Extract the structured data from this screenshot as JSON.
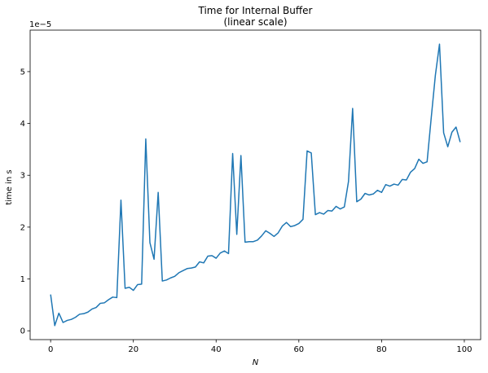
{
  "chart_data": {
    "type": "line",
    "title": "Time for Internal Buffer",
    "subtitle": "(linear scale)",
    "xlabel": "N",
    "ylabel": "time in s",
    "offset_label": "1e−5",
    "xlim": [
      -4.95,
      103.95
    ],
    "ylim": [
      -0.17,
      5.8
    ],
    "xticks": [
      0,
      20,
      40,
      60,
      80,
      100
    ],
    "xtick_labels": [
      "0",
      "20",
      "40",
      "60",
      "80",
      "100"
    ],
    "yticks": [
      0,
      1,
      2,
      3,
      4,
      5
    ],
    "ytick_labels": [
      "0",
      "1",
      "2",
      "3",
      "4",
      "5"
    ],
    "grid": false,
    "series": [
      {
        "color": "#1f77b4",
        "x": [
          0,
          1,
          2,
          3,
          4,
          5,
          6,
          7,
          8,
          9,
          10,
          11,
          12,
          13,
          14,
          15,
          16,
          17,
          18,
          19,
          20,
          21,
          22,
          23,
          24,
          25,
          26,
          27,
          28,
          29,
          30,
          31,
          32,
          33,
          34,
          35,
          36,
          37,
          38,
          39,
          40,
          41,
          42,
          43,
          44,
          45,
          46,
          47,
          48,
          49,
          50,
          51,
          52,
          53,
          54,
          55,
          56,
          57,
          58,
          59,
          60,
          61,
          62,
          63,
          64,
          65,
          66,
          67,
          68,
          69,
          70,
          71,
          72,
          73,
          74,
          75,
          76,
          77,
          78,
          79,
          80,
          81,
          82,
          83,
          84,
          85,
          86,
          87,
          88,
          89,
          90,
          91,
          92,
          93,
          94,
          95,
          96,
          97,
          98,
          99
        ],
        "y": [
          0.7,
          0.1,
          0.34,
          0.16,
          0.2,
          0.22,
          0.26,
          0.32,
          0.33,
          0.36,
          0.42,
          0.45,
          0.53,
          0.54,
          0.6,
          0.65,
          0.64,
          2.52,
          0.82,
          0.84,
          0.78,
          0.89,
          0.9,
          3.7,
          1.7,
          1.38,
          2.67,
          0.96,
          0.98,
          1.02,
          1.05,
          1.12,
          1.16,
          1.2,
          1.21,
          1.23,
          1.33,
          1.31,
          1.44,
          1.45,
          1.4,
          1.5,
          1.54,
          1.49,
          3.42,
          1.86,
          3.38,
          1.71,
          1.72,
          1.72,
          1.75,
          1.83,
          1.93,
          1.88,
          1.82,
          1.89,
          2.02,
          2.09,
          2.01,
          2.03,
          2.07,
          2.15,
          3.47,
          3.43,
          2.24,
          2.28,
          2.25,
          2.32,
          2.31,
          2.4,
          2.35,
          2.39,
          2.88,
          4.29,
          2.49,
          2.54,
          2.65,
          2.62,
          2.64,
          2.71,
          2.67,
          2.82,
          2.79,
          2.83,
          2.81,
          2.92,
          2.91,
          3.06,
          3.13,
          3.31,
          3.23,
          3.26,
          4.11,
          4.93,
          5.53,
          3.82,
          3.55,
          3.83,
          3.93,
          3.64
        ]
      }
    ]
  }
}
